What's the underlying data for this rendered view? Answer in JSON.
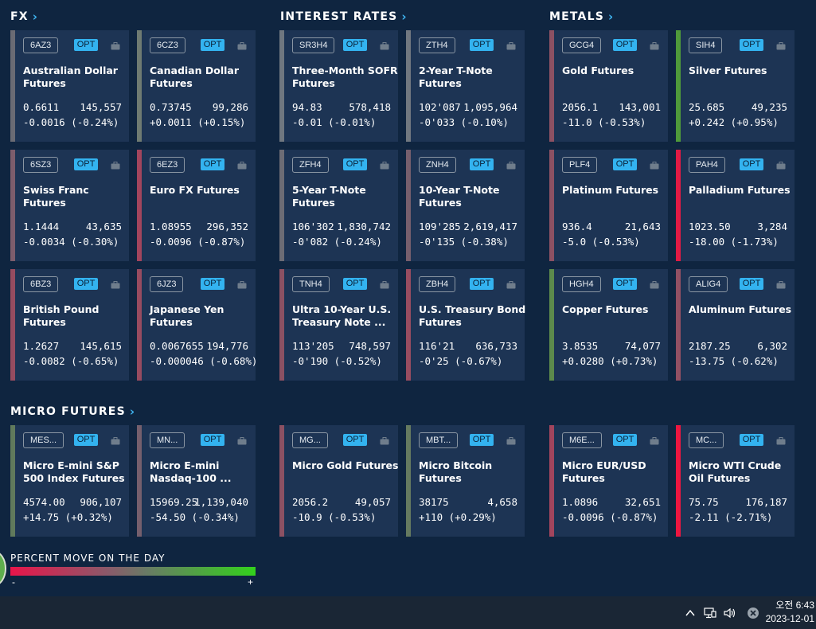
{
  "sections": {
    "fx": "FX",
    "rates": "INTEREST RATES",
    "metals": "METALS",
    "micro": "MICRO FUTURES"
  },
  "opt_label": "OPT",
  "cards": [
    {
      "sym": "6AZ3",
      "name": "Australian Dollar Futures",
      "price": "0.6611",
      "vol": "145,557",
      "chg": "-0.0016 (-0.24%)",
      "color": "#6a6b74"
    },
    {
      "sym": "6CZ3",
      "name": "Canadian Dollar Futures",
      "price": "0.73745",
      "vol": "99,286",
      "chg": "+0.0011 (+0.15%)",
      "color": "#6f7b72"
    },
    {
      "sym": "SR3H4",
      "name": "Three-Month SOFR Futures",
      "price": "94.83",
      "vol": "578,418",
      "chg": "-0.01 (-0.01%)",
      "color": "#6f7780"
    },
    {
      "sym": "ZTH4",
      "name": "2-Year T-Note Futures",
      "price": "102'087",
      "vol": "1,095,964",
      "chg": "-0'033 (-0.10%)",
      "color": "#717880"
    },
    {
      "sym": "GCG4",
      "name": "Gold Futures",
      "price": "2056.1",
      "vol": "143,001",
      "chg": "-11.0 (-0.53%)",
      "color": "#8c5163"
    },
    {
      "sym": "SIH4",
      "name": "Silver Futures",
      "price": "25.685",
      "vol": "49,235",
      "chg": "+0.242 (+0.95%)",
      "color": "#4f9a3a"
    },
    {
      "sym": "6SZ3",
      "name": "Swiss Franc Futures",
      "price": "1.1444",
      "vol": "43,635",
      "chg": "-0.0034 (-0.30%)",
      "color": "#7d5d6c"
    },
    {
      "sym": "6EZ3",
      "name": "Euro FX Futures",
      "price": "1.08955",
      "vol": "296,352",
      "chg": "-0.0096 (-0.87%)",
      "color": "#a2455d"
    },
    {
      "sym": "ZFH4",
      "name": "5-Year T-Note Futures",
      "price": "106'302",
      "vol": "1,830,742",
      "chg": "-0'082 (-0.24%)",
      "color": "#6c6c75"
    },
    {
      "sym": "ZNH4",
      "name": "10-Year T-Note Futures",
      "price": "109'285",
      "vol": "2,619,417",
      "chg": "-0'135 (-0.38%)",
      "color": "#765f6d"
    },
    {
      "sym": "PLF4",
      "name": "Platinum Futures",
      "price": "936.4",
      "vol": "21,643",
      "chg": "-5.0 (-0.53%)",
      "color": "#8c5163"
    },
    {
      "sym": "PAH4",
      "name": "Palladium Futures",
      "price": "1023.50",
      "vol": "3,284",
      "chg": "-18.00 (-1.73%)",
      "color": "#e11a44"
    },
    {
      "sym": "6BZ3",
      "name": "British Pound Futures",
      "price": "1.2627",
      "vol": "145,615",
      "chg": "-0.0082 (-0.65%)",
      "color": "#964c60"
    },
    {
      "sym": "6JZ3",
      "name": "Japanese Yen Futures",
      "price": "0.0067655",
      "vol": "194,776",
      "chg": "-0.000046 (-0.68%)",
      "color": "#974b60"
    },
    {
      "sym": "TNH4",
      "name": "Ultra 10-Year U.S. Treasury Note ...",
      "price": "113'205",
      "vol": "748,597",
      "chg": "-0'190 (-0.52%)",
      "color": "#8b5163"
    },
    {
      "sym": "ZBH4",
      "name": "U.S. Treasury Bond Futures",
      "price": "116'21",
      "vol": "636,733",
      "chg": "-0'25 (-0.67%)",
      "color": "#974c60"
    },
    {
      "sym": "HGH4",
      "name": "Copper Futures",
      "price": "3.8535",
      "vol": "74,077",
      "chg": "+0.0280 (+0.73%)",
      "color": "#5c8a4c"
    },
    {
      "sym": "ALIG4",
      "name": "Aluminum Futures",
      "price": "2187.25",
      "vol": "6,302",
      "chg": "-13.75 (-0.62%)",
      "color": "#925063"
    },
    {
      "sym": "MES...",
      "name": "Micro E-mini S&P 500 Index Futures",
      "price": "4574.00",
      "vol": "906,107",
      "chg": "+14.75 (+0.32%)",
      "color": "#607a5c"
    },
    {
      "sym": "MN...",
      "name": "Micro E-mini Nasdaq-100 ...",
      "price": "15969.25",
      "vol": "1,139,040",
      "chg": "-54.50 (-0.34%)",
      "color": "#755f6d"
    },
    {
      "sym": "MG...",
      "name": "Micro Gold Futures",
      "price": "2056.2",
      "vol": "49,057",
      "chg": "-10.9 (-0.53%)",
      "color": "#8c5163"
    },
    {
      "sym": "MBT...",
      "name": "Micro Bitcoin Futures",
      "price": "38175",
      "vol": "4,658",
      "chg": "+110 (+0.29%)",
      "color": "#657a60"
    },
    {
      "sym": "M6E...",
      "name": "Micro EUR/USD Futures",
      "price": "1.0896",
      "vol": "32,651",
      "chg": "-0.0096 (-0.87%)",
      "color": "#a2455d"
    },
    {
      "sym": "MC...",
      "name": "Micro WTI Crude Oil Futures",
      "price": "75.75",
      "vol": "176,187",
      "chg": "-2.11 (-2.71%)",
      "color": "#ec1640"
    }
  ],
  "legend": {
    "title": "PERCENT MOVE ON THE DAY",
    "min": "-",
    "max": "+"
  },
  "taskbar": {
    "time": "오전 6:43",
    "date": "2023-12-01"
  }
}
